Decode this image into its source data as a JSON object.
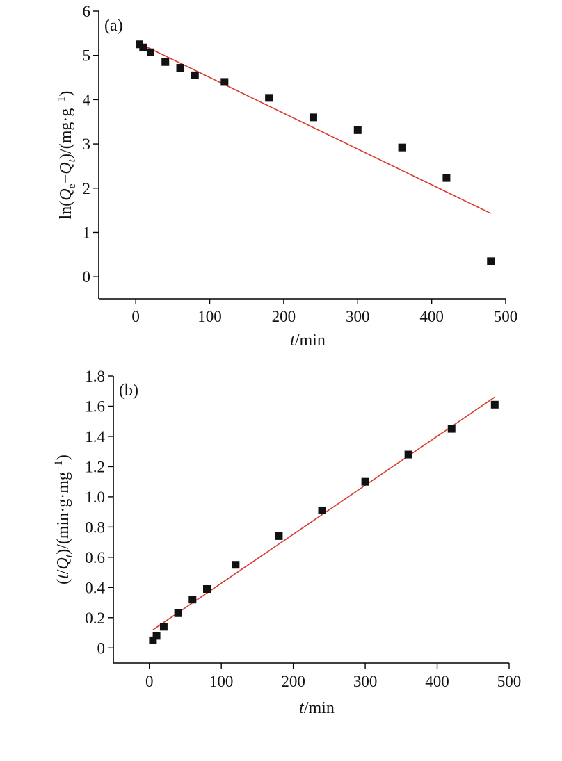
{
  "colors": {
    "marker": "#111111",
    "fit_line": "#d9382b",
    "axis": "#000000"
  },
  "chart_data": [
    {
      "type": "scatter",
      "panel_label": "(a)",
      "xlabel": "t/min",
      "ylabel": "ln(Qe−Qt)/(mg·g−1)",
      "xlim": [
        -50,
        500
      ],
      "ylim": [
        -0.5,
        6
      ],
      "x_ticks": [
        "0",
        "100",
        "200",
        "300",
        "400",
        "500"
      ],
      "x_tick_values": [
        0,
        100,
        200,
        300,
        400,
        500
      ],
      "y_ticks": [
        "0",
        "1",
        "2",
        "3",
        "4",
        "5",
        "6"
      ],
      "y_tick_values": [
        0,
        1,
        2,
        3,
        4,
        5,
        6
      ],
      "grid": false,
      "series": [
        {
          "kind": "points",
          "x": [
            5,
            10,
            20,
            40,
            60,
            80,
            120,
            180,
            240,
            300,
            360,
            420,
            480
          ],
          "y": [
            5.25,
            5.18,
            5.07,
            4.85,
            4.72,
            4.55,
            4.4,
            4.04,
            3.6,
            3.31,
            2.92,
            2.23,
            0.35
          ]
        },
        {
          "kind": "fit",
          "x": [
            5,
            480
          ],
          "y": [
            5.27,
            1.43
          ]
        }
      ]
    },
    {
      "type": "scatter",
      "panel_label": "(b)",
      "xlabel": "t/min",
      "ylabel": "(t/Qt)/(min·g·mg−1)",
      "xlim": [
        -50,
        500
      ],
      "ylim": [
        -0.1,
        1.8
      ],
      "x_ticks": [
        "0",
        "100",
        "200",
        "300",
        "400",
        "500"
      ],
      "x_tick_values": [
        0,
        100,
        200,
        300,
        400,
        500
      ],
      "y_ticks": [
        "0",
        "0.2",
        "0.4",
        "0.6",
        "0.8",
        "1.0",
        "1.2",
        "1.4",
        "1.6",
        "1.8"
      ],
      "y_tick_values": [
        0,
        0.2,
        0.4,
        0.6,
        0.8,
        1.0,
        1.2,
        1.4,
        1.6,
        1.8
      ],
      "grid": false,
      "series": [
        {
          "kind": "points",
          "x": [
            5,
            10,
            20,
            40,
            60,
            80,
            120,
            180,
            240,
            300,
            360,
            420,
            480
          ],
          "y": [
            0.05,
            0.08,
            0.14,
            0.23,
            0.32,
            0.39,
            0.55,
            0.74,
            0.91,
            1.1,
            1.28,
            1.45,
            1.61
          ]
        },
        {
          "kind": "fit",
          "x": [
            5,
            480
          ],
          "y": [
            0.12,
            1.66
          ]
        }
      ]
    }
  ]
}
